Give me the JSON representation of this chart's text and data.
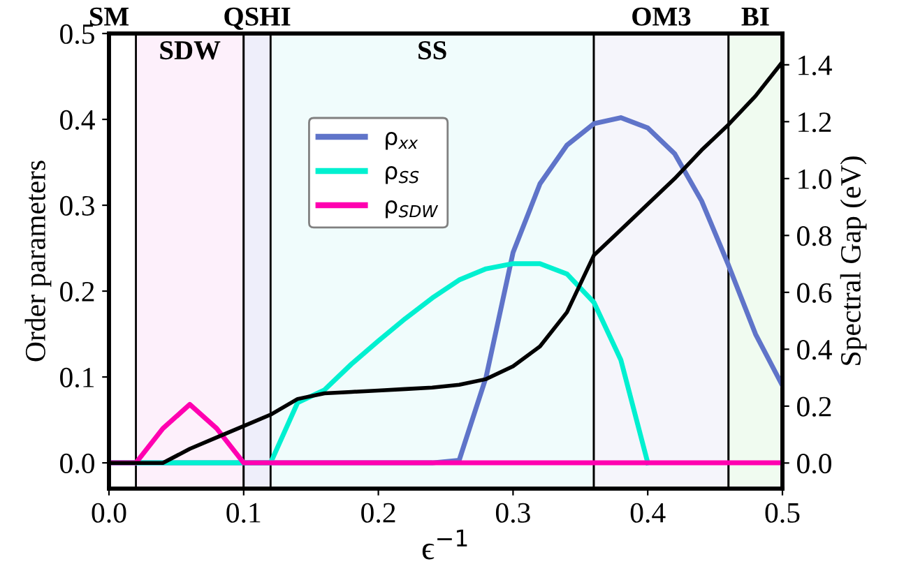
{
  "chart_data": {
    "type": "line",
    "xlabel": "ϵ$^{−1}$",
    "ylabel": "Order parameters",
    "y2label": "Spectral Gap (eV)",
    "x": [
      0,
      0.02,
      0.04,
      0.06,
      0.08,
      0.1,
      0.12,
      0.14,
      0.16,
      0.18,
      0.2,
      0.22,
      0.24,
      0.26,
      0.28,
      0.3,
      0.32,
      0.34,
      0.36,
      0.38,
      0.4,
      0.42,
      0.44,
      0.46,
      0.48,
      0.5
    ],
    "series": [
      {
        "name": "ρ$_{xx}$",
        "color": "#5f74c9",
        "values": [
          0,
          0,
          0,
          0,
          0,
          0,
          0,
          0,
          0,
          0,
          0,
          0,
          0,
          0.003,
          0.1,
          0.245,
          0.325,
          0.37,
          0.395,
          0.402,
          0.39,
          0.36,
          0.305,
          0.23,
          0.15,
          0.09
        ]
      },
      {
        "name": "ρ$_{SS}$",
        "color": "#00f0d0",
        "values": [
          0,
          0,
          0,
          0,
          0,
          0,
          0,
          0.07,
          0.085,
          0.115,
          0.142,
          0.168,
          0.192,
          0.213,
          0.226,
          0.232,
          0.232,
          0.22,
          0.187,
          0.12,
          0,
          null,
          null,
          null,
          null,
          null
        ]
      },
      {
        "name": "ρ$_{SDW}$",
        "color": "#ff00b0",
        "values": [
          0,
          0,
          0.04,
          0.068,
          0.04,
          0,
          0,
          0,
          0,
          0,
          0,
          0,
          0,
          0,
          0,
          0,
          0,
          0,
          0,
          0,
          0,
          0,
          0,
          0,
          0,
          0
        ]
      },
      {
        "color": "#000000",
        "axis": "y2",
        "values": [
          0,
          0,
          0,
          0.05,
          0.09,
          0.13,
          0.17,
          0.225,
          0.245,
          0.25,
          0.255,
          0.26,
          0.265,
          0.275,
          0.295,
          0.34,
          0.41,
          0.53,
          0.73,
          0.82,
          0.91,
          1.0,
          1.1,
          1.19,
          1.29,
          1.41
        ]
      }
    ],
    "xlim": [
      0,
      0.5
    ],
    "xticks": [
      {
        "value": 0,
        "label": "0.0"
      },
      {
        "value": 0.1,
        "label": "0.1"
      },
      {
        "value": 0.2,
        "label": "0.2"
      },
      {
        "value": 0.3,
        "label": "0.3"
      },
      {
        "value": 0.4,
        "label": "0.4"
      },
      {
        "value": 0.5,
        "label": "0.5"
      }
    ],
    "ylim": [
      -0.03,
      0.5
    ],
    "yticks": [
      {
        "value": 0,
        "label": "0.0"
      },
      {
        "value": 0.1,
        "label": "0.1"
      },
      {
        "value": 0.2,
        "label": "0.2"
      },
      {
        "value": 0.3,
        "label": "0.3"
      },
      {
        "value": 0.4,
        "label": "0.4"
      },
      {
        "value": 0.5,
        "label": "0.5"
      }
    ],
    "y2lim": [
      -0.09,
      1.51
    ],
    "y2ticks": [
      {
        "value": 0,
        "label": "0.0"
      },
      {
        "value": 0.2,
        "label": "0.2"
      },
      {
        "value": 0.4,
        "label": "0.4"
      },
      {
        "value": 0.6,
        "label": "0.6"
      },
      {
        "value": 0.8,
        "label": "0.8"
      },
      {
        "value": 1.0,
        "label": "1.0"
      },
      {
        "value": 1.2,
        "label": "1.2"
      },
      {
        "value": 1.4,
        "label": "1.4"
      }
    ],
    "bands": [
      {
        "axis": "x",
        "from": 0.02,
        "to": 0.1,
        "label": "SDW",
        "color": "#fdf0fb"
      },
      {
        "axis": "x",
        "from": 0.1,
        "to": 0.12,
        "label": "QSHI",
        "color": "#eeeefa"
      },
      {
        "axis": "x",
        "from": 0.12,
        "to": 0.36,
        "label": "SS",
        "color": "#f0fcfc"
      },
      {
        "axis": "x",
        "from": 0.36,
        "to": 0.46,
        "label": "OM3",
        "color": "#f5f5fb"
      },
      {
        "axis": "x",
        "from": 0.46,
        "to": 0.5,
        "label": "BI",
        "color": "#f0fbf0"
      }
    ],
    "annotations": [
      "SM"
    ],
    "legend": "top center",
    "grid": false,
    "marker": "none",
    "line_style": "solid"
  }
}
